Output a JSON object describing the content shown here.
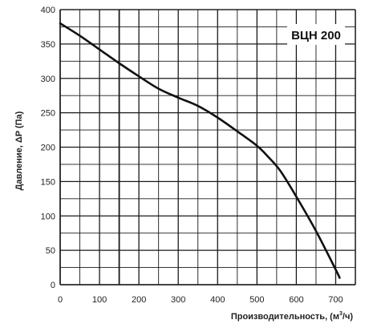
{
  "chart_data": {
    "type": "line",
    "title": "ВЦН 200",
    "xlabel": "Производительность, (м3/ч)",
    "xlabel_parts": {
      "prefix": "Производительность, (м",
      "sup": "3",
      "suffix": "/ч)"
    },
    "ylabel": "Давление, ΔP (Па)",
    "xlim": [
      0,
      750
    ],
    "ylim": [
      0,
      400
    ],
    "x_ticks": [
      0,
      100,
      200,
      300,
      400,
      500,
      600,
      700
    ],
    "y_ticks": [
      0,
      50,
      100,
      150,
      200,
      250,
      300,
      350,
      400
    ],
    "grid": true,
    "series": [
      {
        "x": [
          0,
          50,
          100,
          150,
          200,
          250,
          300,
          350,
          400,
          450,
          500,
          530,
          560,
          600,
          650,
          700,
          710
        ],
        "values": [
          380,
          362,
          342,
          322,
          303,
          285,
          272,
          260,
          243,
          223,
          202,
          185,
          165,
          128,
          78,
          22,
          10
        ]
      }
    ],
    "colors": {
      "line": "#111111",
      "grid": "#1a1a1a",
      "background": "#ffffff"
    }
  }
}
